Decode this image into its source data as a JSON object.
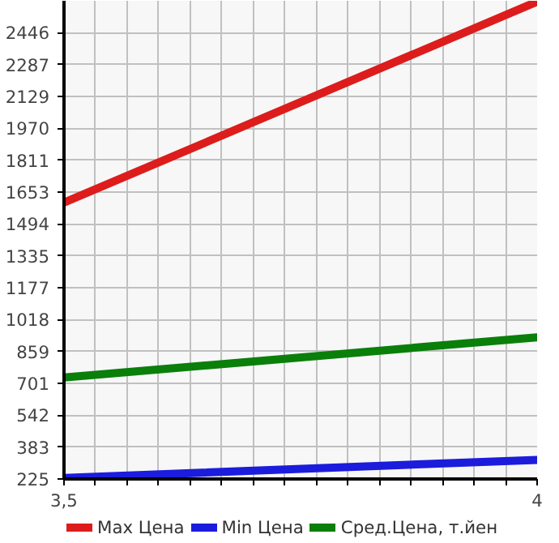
{
  "chart_data": {
    "type": "line",
    "x": [
      3.5,
      4
    ],
    "series": [
      {
        "name": "Max Цена",
        "color": "#dd1c1c",
        "values": [
          1600,
          2600
        ]
      },
      {
        "name": "Min Цена",
        "color": "#1c1cdd",
        "values": [
          230,
          320
        ]
      },
      {
        "name": "Сред.Цена, т.йен",
        "color": "#0a7f0a",
        "values": [
          730,
          930
        ]
      }
    ],
    "xlim": [
      3.5,
      4
    ],
    "ylim": [
      225,
      2604
    ],
    "xticks": [
      {
        "value": 3.5,
        "label": "3,5"
      },
      {
        "value": 3.5333,
        "label": null
      },
      {
        "value": 3.5667,
        "label": null
      },
      {
        "value": 3.6,
        "label": null
      },
      {
        "value": 3.6333,
        "label": null
      },
      {
        "value": 3.6667,
        "label": null
      },
      {
        "value": 3.7,
        "label": null
      },
      {
        "value": 3.7333,
        "label": null
      },
      {
        "value": 3.7667,
        "label": null
      },
      {
        "value": 3.8,
        "label": null
      },
      {
        "value": 3.8333,
        "label": null
      },
      {
        "value": 3.8667,
        "label": null
      },
      {
        "value": 3.9,
        "label": null
      },
      {
        "value": 3.9333,
        "label": null
      },
      {
        "value": 3.9667,
        "label": null
      },
      4
    ],
    "yticks": [
      225,
      383,
      542,
      701,
      859,
      1018,
      1177,
      1335,
      1494,
      1653,
      1811,
      1970,
      2129,
      2287,
      2446
    ],
    "grid": true,
    "legend": "bottom",
    "marker": "none",
    "line_style": "solid"
  }
}
